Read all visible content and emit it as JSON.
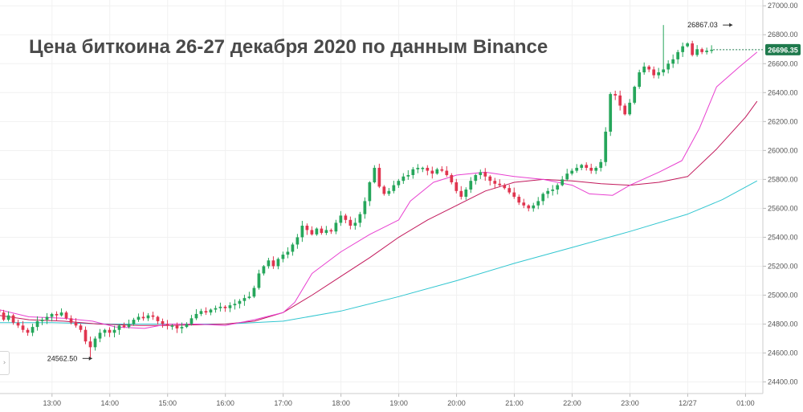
{
  "chart_data": {
    "type": "candlestick",
    "title": "Цена биткоина 26-27 декабря 2020 по данным Binance",
    "y_ticks": [
      24400,
      24600,
      24800,
      25000,
      25200,
      25400,
      25600,
      25800,
      26000,
      26200,
      26400,
      26600,
      26800,
      27000
    ],
    "y_tick_labels": [
      "24400.00",
      "24600.00",
      "24800.00",
      "25000.00",
      "25200.00",
      "25400.00",
      "25600.00",
      "25800.00",
      "26000.00",
      "26200.00",
      "26400.00",
      "26600.00",
      "26800.00",
      "27000.00"
    ],
    "ylim": [
      24320,
      27040
    ],
    "x_ticks": [
      13,
      14,
      15,
      16,
      17,
      18,
      19,
      20,
      21,
      22,
      23,
      24,
      25
    ],
    "x_tick_labels": [
      "13:00",
      "14:00",
      "15:00",
      "16:00",
      "17:00",
      "18:00",
      "19:00",
      "20:00",
      "21:00",
      "22:00",
      "23:00",
      "12/27",
      "01:00"
    ],
    "xlim": [
      12.1,
      25.3
    ],
    "interval_hours": 0.08333,
    "first_candle_time": 12.08,
    "up_color": "#26a65b",
    "down_color": "#e0354f",
    "current_price": 26696.35,
    "current_price_label": "26696.35",
    "current_price_color": "#1f7a4d",
    "annotations": [
      {
        "label": "26867.03",
        "price": 26867.03,
        "time": 24.83
      },
      {
        "label": "24562.50",
        "price": 24562.5,
        "time": 13.75
      }
    ],
    "closes": [
      24880,
      24830,
      24860,
      24810,
      24790,
      24760,
      24740,
      24780,
      24820,
      24830,
      24850,
      24870,
      24860,
      24880,
      24840,
      24810,
      24790,
      24760,
      24680,
      24640,
      24700,
      24740,
      24760,
      24740,
      24760,
      24790,
      24780,
      24800,
      24830,
      24850,
      24840,
      24860,
      24850,
      24820,
      24800,
      24790,
      24790,
      24770,
      24780,
      24800,
      24840,
      24870,
      24890,
      24880,
      24900,
      24910,
      24920,
      24910,
      24930,
      24940,
      24960,
      24980,
      24990,
      25050,
      25150,
      25200,
      25240,
      25200,
      25250,
      25280,
      25300,
      25350,
      25400,
      25480,
      25450,
      25420,
      25460,
      25430,
      25450,
      25440,
      25500,
      25550,
      25520,
      25480,
      25500,
      25560,
      25650,
      25780,
      25880,
      25750,
      25700,
      25720,
      25760,
      25790,
      25820,
      25830,
      25870,
      25880,
      25880,
      25860,
      25840,
      25870,
      25860,
      25830,
      25780,
      25720,
      25680,
      25730,
      25790,
      25830,
      25850,
      25820,
      25790,
      25770,
      25760,
      25740,
      25710,
      25680,
      25640,
      25620,
      25600,
      25620,
      25650,
      25700,
      25720,
      25730,
      25760,
      25800,
      25840,
      25860,
      25880,
      25900,
      25880,
      25860,
      25880,
      25920,
      26130,
      26390,
      26380,
      26310,
      26250,
      26330,
      26440,
      26540,
      26580,
      26560,
      26520,
      26540,
      26560,
      26600,
      26630,
      26680,
      26720,
      26740,
      26660,
      26700,
      26680,
      26690,
      26696.35
    ],
    "ma_fast_color": "#e83fd0",
    "ma_mid_color": "#c2185b",
    "ma_slow_color": "#31c6d0",
    "ma_fast": [
      [
        12.08,
        24900
      ],
      [
        12.6,
        24850
      ],
      [
        13.2,
        24840
      ],
      [
        13.7,
        24820
      ],
      [
        14.1,
        24780
      ],
      [
        14.6,
        24770
      ],
      [
        15.0,
        24800
      ],
      [
        15.5,
        24800
      ],
      [
        16.0,
        24790
      ],
      [
        16.5,
        24830
      ],
      [
        17.0,
        24880
      ],
      [
        17.2,
        24950
      ],
      [
        17.5,
        25150
      ],
      [
        18.0,
        25300
      ],
      [
        18.5,
        25420
      ],
      [
        19.0,
        25520
      ],
      [
        19.2,
        25650
      ],
      [
        19.6,
        25780
      ],
      [
        20.0,
        25830
      ],
      [
        20.5,
        25850
      ],
      [
        21.0,
        25820
      ],
      [
        21.5,
        25800
      ],
      [
        22.0,
        25760
      ],
      [
        22.3,
        25700
      ],
      [
        22.7,
        25690
      ],
      [
        23.0,
        25760
      ],
      [
        23.5,
        25850
      ],
      [
        23.9,
        25930
      ],
      [
        24.2,
        26150
      ],
      [
        24.5,
        26440
      ],
      [
        24.9,
        26580
      ],
      [
        25.2,
        26680
      ]
    ],
    "ma_mid": [
      [
        12.08,
        24860
      ],
      [
        12.6,
        24830
      ],
      [
        13.2,
        24820
      ],
      [
        13.8,
        24800
      ],
      [
        14.5,
        24790
      ],
      [
        15.0,
        24790
      ],
      [
        16.0,
        24800
      ],
      [
        16.5,
        24820
      ],
      [
        17.0,
        24880
      ],
      [
        17.5,
        25000
      ],
      [
        18.0,
        25130
      ],
      [
        18.5,
        25260
      ],
      [
        19.0,
        25400
      ],
      [
        19.5,
        25520
      ],
      [
        20.0,
        25620
      ],
      [
        20.5,
        25720
      ],
      [
        21.0,
        25780
      ],
      [
        21.5,
        25800
      ],
      [
        22.0,
        25790
      ],
      [
        22.5,
        25770
      ],
      [
        23.0,
        25760
      ],
      [
        23.5,
        25780
      ],
      [
        24.0,
        25820
      ],
      [
        24.5,
        26010
      ],
      [
        25.0,
        26230
      ],
      [
        25.2,
        26340
      ]
    ],
    "ma_slow": [
      [
        12.08,
        24810
      ],
      [
        13.0,
        24810
      ],
      [
        14.0,
        24800
      ],
      [
        15.0,
        24800
      ],
      [
        16.0,
        24800
      ],
      [
        17.0,
        24820
      ],
      [
        18.0,
        24890
      ],
      [
        19.0,
        24990
      ],
      [
        20.0,
        25100
      ],
      [
        21.0,
        25220
      ],
      [
        22.0,
        25330
      ],
      [
        23.0,
        25440
      ],
      [
        24.0,
        25560
      ],
      [
        24.6,
        25660
      ],
      [
        25.2,
        25790
      ]
    ]
  }
}
